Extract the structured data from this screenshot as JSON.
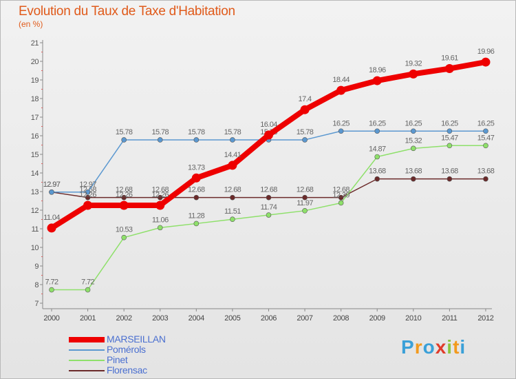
{
  "header": {
    "title": "Evolution du Taux de Taxe d'Habitation",
    "subtitle": "(en %)"
  },
  "logo": [
    "P",
    "r",
    "o",
    "x",
    "i",
    "t",
    "i"
  ],
  "logo_colors": [
    "#3aa0d8",
    "#f29a1e",
    "#3aa0d8",
    "#e03c2a",
    "#8cc63f",
    "#f29a1e",
    "#3aa0d8"
  ],
  "chart_data": {
    "type": "line",
    "title": "Evolution du Taux de Taxe d'Habitation",
    "ylabel": "(en %)",
    "xlabel": "",
    "x": [
      "2000",
      "2001",
      "2002",
      "2003",
      "2004",
      "2005",
      "2006",
      "2007",
      "2008",
      "2009",
      "2010",
      "2011",
      "2012"
    ],
    "ylim": [
      7,
      21
    ],
    "yticks": [
      "7",
      "8",
      "9",
      "10",
      "11",
      "12",
      "13",
      "14",
      "15",
      "16",
      "17",
      "18",
      "19",
      "20",
      "21"
    ],
    "grid": false,
    "legend_position": "bottom-left",
    "series": [
      {
        "name": "Florensac",
        "color": "#6b2a2a",
        "values": [
          12.97,
          12.68,
          12.68,
          12.68,
          12.68,
          12.68,
          12.68,
          12.68,
          12.68,
          13.68,
          13.68,
          13.68,
          13.68
        ],
        "labels": [
          "12.97",
          "12.68",
          "12.68",
          "12.68",
          "12.68",
          "12.68",
          "12.68",
          "12.68",
          "12.68",
          "13.68",
          "13.68",
          "13.68",
          "13.68"
        ]
      },
      {
        "name": "Pinet",
        "color": "#8ee06a",
        "values": [
          7.72,
          7.72,
          10.53,
          11.06,
          11.28,
          11.51,
          11.74,
          11.97,
          12.39,
          14.87,
          15.32,
          15.47,
          15.47
        ],
        "labels": [
          "7.72",
          "7.72",
          "10.53",
          "11.06",
          "11.28",
          "11.51",
          "11.74",
          "11.97",
          "12.39",
          "14.87",
          "15.32",
          "15.47",
          "15.47"
        ]
      },
      {
        "name": "Pomérols",
        "color": "#5b98d0",
        "values": [
          12.97,
          12.97,
          15.78,
          15.78,
          15.78,
          15.78,
          15.78,
          15.78,
          16.25,
          16.25,
          16.25,
          16.25,
          16.25
        ],
        "labels": [
          "12.97",
          "12.97",
          "15.78",
          "15.78",
          "15.78",
          "15.78",
          "15.78",
          "15.78",
          "16.25",
          "16.25",
          "16.25",
          "16.25",
          "16.25"
        ]
      },
      {
        "name": "MARSEILLAN",
        "color": "#ee0000",
        "values": [
          11.04,
          12.26,
          12.26,
          12.26,
          13.73,
          14.41,
          16.04,
          17.4,
          18.44,
          18.96,
          19.32,
          19.61,
          19.96
        ],
        "labels": [
          "11.04",
          "12.26",
          "12.26",
          "12.26",
          "13.73",
          "14.41",
          "16.04",
          "17.4",
          "18.44",
          "18.96",
          "19.32",
          "19.61",
          "19.96"
        ]
      }
    ]
  },
  "legend": {
    "items": [
      {
        "name": "MARSEILLAN",
        "color": "#ee0000"
      },
      {
        "name": "Pomérols",
        "color": "#5b98d0"
      },
      {
        "name": "Pinet",
        "color": "#8ee06a"
      },
      {
        "name": "Florensac",
        "color": "#6b2a2a"
      }
    ]
  }
}
